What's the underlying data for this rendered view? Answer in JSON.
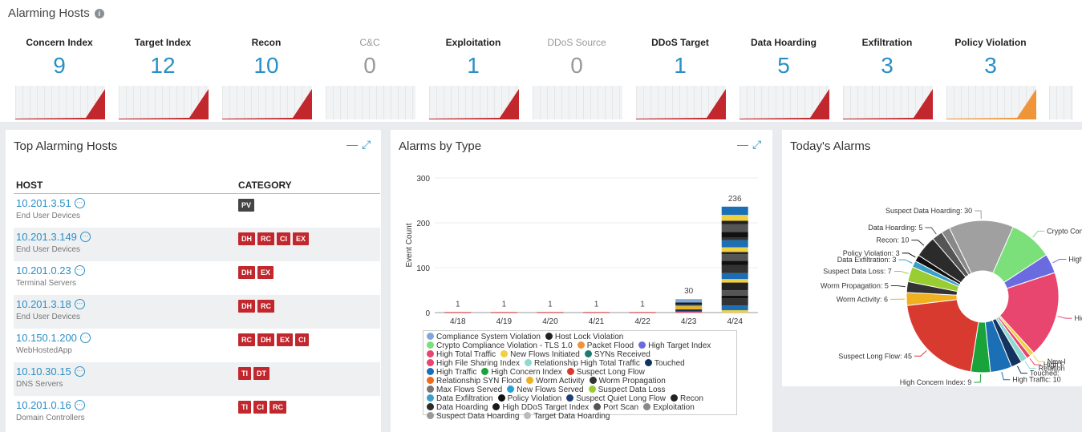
{
  "header": {
    "title": "Alarming Hosts",
    "info_icon": "info-icon"
  },
  "kpis": [
    {
      "label": "Concern Index",
      "value": "9",
      "dim": false,
      "color": "#c1272d"
    },
    {
      "label": "Target Index",
      "value": "12",
      "dim": false,
      "color": "#c1272d"
    },
    {
      "label": "Recon",
      "value": "10",
      "dim": false,
      "color": "#c1272d"
    },
    {
      "label": "C&C",
      "value": "0",
      "dim": true,
      "color": ""
    },
    {
      "label": "Exploitation",
      "value": "1",
      "dim": false,
      "color": "#c1272d"
    },
    {
      "label": "DDoS Source",
      "value": "0",
      "dim": true,
      "color": ""
    },
    {
      "label": "DDoS Target",
      "value": "1",
      "dim": false,
      "color": "#c1272d"
    },
    {
      "label": "Data Hoarding",
      "value": "5",
      "dim": false,
      "color": "#c1272d"
    },
    {
      "label": "Exfiltration",
      "value": "3",
      "dim": false,
      "color": "#c1272d"
    },
    {
      "label": "Policy Violation",
      "value": "3",
      "dim": false,
      "color": "#f0943a"
    }
  ],
  "top_hosts": {
    "title": "Top Alarming Hosts",
    "minimize_icon": "minimize-icon",
    "expand_icon": "expand-icon",
    "col_host": "HOST",
    "col_category": "CATEGORY",
    "rows": [
      {
        "ip": "10.201.3.51",
        "type": "End User Devices",
        "badges": [
          "PV"
        ]
      },
      {
        "ip": "10.201.3.149",
        "type": "End User Devices",
        "badges": [
          "DH",
          "RC",
          "CI",
          "EX"
        ]
      },
      {
        "ip": "10.201.0.23",
        "type": "Terminal Servers",
        "badges": [
          "DH",
          "EX"
        ]
      },
      {
        "ip": "10.201.3.18",
        "type": "End User Devices",
        "badges": [
          "DH",
          "RC"
        ]
      },
      {
        "ip": "10.150.1.200",
        "type": "WebHostedApp",
        "badges": [
          "RC",
          "DH",
          "EX",
          "CI"
        ]
      },
      {
        "ip": "10.10.30.15",
        "type": "DNS Servers",
        "badges": [
          "TI",
          "DT"
        ]
      },
      {
        "ip": "10.201.0.16",
        "type": "Domain Controllers",
        "badges": [
          "TI",
          "CI",
          "RC"
        ]
      }
    ]
  },
  "alarms_by_type": {
    "title": "Alarms by Type",
    "legend": [
      {
        "name": "Compliance System Violation",
        "color": "#7fa7d9"
      },
      {
        "name": "Host Lock Violation",
        "color": "#222222"
      },
      {
        "name": "Crypto Compliance Violation - TLS 1.0",
        "color": "#7be07a"
      },
      {
        "name": "Packet Flood",
        "color": "#f0943a"
      },
      {
        "name": "High Target Index",
        "color": "#6b6be0"
      },
      {
        "name": "High Total Traffic",
        "color": "#e8456f"
      },
      {
        "name": "New Flows Initiated",
        "color": "#f0d040"
      },
      {
        "name": "SYNs Received",
        "color": "#1f7a6e"
      },
      {
        "name": "High File Sharing Index",
        "color": "#e8456f"
      },
      {
        "name": "Relationship High Total Traffic",
        "color": "#8fd9d0"
      },
      {
        "name": "Touched",
        "color": "#13345e"
      },
      {
        "name": "High Traffic",
        "color": "#1a6fb5"
      },
      {
        "name": "High Concern Index",
        "color": "#1aa33a"
      },
      {
        "name": "Suspect Long Flow",
        "color": "#d93a2f"
      },
      {
        "name": "Relationship SYN Flood",
        "color": "#f06a20"
      },
      {
        "name": "Worm Activity",
        "color": "#f0b020"
      },
      {
        "name": "Worm Propagation",
        "color": "#333333"
      },
      {
        "name": "Max Flows Served",
        "color": "#777777"
      },
      {
        "name": "New Flows Served",
        "color": "#2aa0d8"
      },
      {
        "name": "Suspect Data Loss",
        "color": "#9acd32"
      },
      {
        "name": "Data Exfiltration",
        "color": "#3aa0c8"
      },
      {
        "name": "Policy Violation",
        "color": "#111111"
      },
      {
        "name": "Suspect Quiet Long Flow",
        "color": "#1f3f7a"
      },
      {
        "name": "Recon",
        "color": "#222222"
      },
      {
        "name": "Data Hoarding",
        "color": "#2b2b2b"
      },
      {
        "name": "High DDoS Target Index",
        "color": "#1b1b1b"
      },
      {
        "name": "Port Scan",
        "color": "#555555"
      },
      {
        "name": "Exploitation",
        "color": "#888888"
      },
      {
        "name": "Suspect Data Hoarding",
        "color": "#999999"
      },
      {
        "name": "Target Data Hoarding",
        "color": "#bbbbbb"
      }
    ]
  },
  "chart_data": {
    "type": "bar",
    "ylabel": "Event Count",
    "ylim": [
      0,
      300
    ],
    "yticks": [
      "0",
      "100",
      "200",
      "300"
    ],
    "categories": [
      "4/18",
      "4/19",
      "4/20",
      "4/21",
      "4/22",
      "4/23",
      "4/24"
    ],
    "values": [
      1,
      1,
      1,
      1,
      1,
      30,
      236
    ],
    "labels": [
      "1",
      "1",
      "1",
      "1",
      "1",
      "30",
      "236"
    ]
  },
  "todays_alarms": {
    "title": "Today's Alarms",
    "slices": [
      {
        "label": "Suspect Data Hoarding: 30",
        "value": 30,
        "color": "#a0a0a0"
      },
      {
        "label": "Crypto Compliance V",
        "value": 20,
        "color": "#7be07a"
      },
      {
        "label": "High Target",
        "value": 9,
        "color": "#6b6be0"
      },
      {
        "label": "High T",
        "value": 40,
        "color": "#e8456f"
      },
      {
        "label": "New I",
        "value": 2,
        "color": "#f0d040"
      },
      {
        "label": "High F",
        "value": 2,
        "color": "#e8456f"
      },
      {
        "label": "Relation",
        "value": 3,
        "color": "#8fd9d0"
      },
      {
        "label": "Touched: ",
        "value": 5,
        "color": "#13345e"
      },
      {
        "label": "High Traffic: 10",
        "value": 10,
        "color": "#1a6fb5"
      },
      {
        "label": "High Concern Index: 9",
        "value": 9,
        "color": "#1aa33a"
      },
      {
        "label": "Suspect Long Flow: 45",
        "value": 45,
        "color": "#d93a2f"
      },
      {
        "label": "Worm Activity: 6",
        "value": 6,
        "color": "#f0b020"
      },
      {
        "label": "Worm Propagation: 5",
        "value": 5,
        "color": "#333333"
      },
      {
        "label": "Suspect Data Loss: 7",
        "value": 7,
        "color": "#9acd32"
      },
      {
        "label": "Data Exfiltration: 3",
        "value": 3,
        "color": "#3aa0c8"
      },
      {
        "label": "Policy Violation: 3",
        "value": 3,
        "color": "#111111"
      },
      {
        "label": "Recon: 10",
        "value": 10,
        "color": "#2b2b2b"
      },
      {
        "label": "Data Hoarding: 5",
        "value": 5,
        "color": "#555555"
      },
      {
        "label": "",
        "value": 4,
        "color": "#888888"
      }
    ]
  }
}
